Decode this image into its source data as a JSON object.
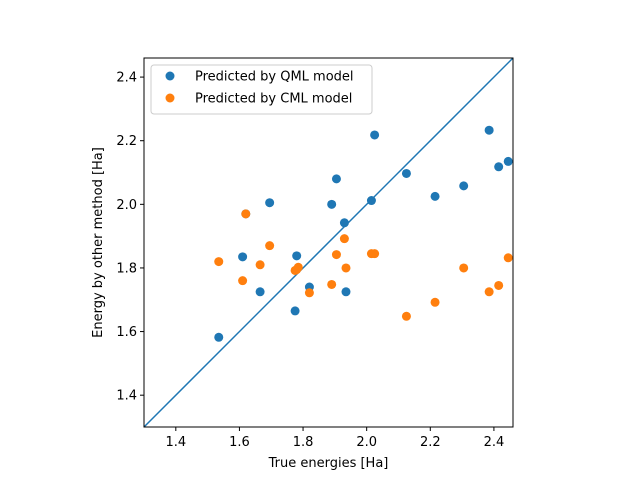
{
  "chart_data": {
    "type": "scatter",
    "title": "",
    "xlabel": "True energies [Ha]",
    "ylabel": "Energy by other method [Ha]",
    "xlim": [
      1.3,
      2.46
    ],
    "ylim": [
      1.3,
      2.46
    ],
    "xticks": [
      "1.4",
      "1.6",
      "1.8",
      "2.0",
      "2.2",
      "2.4"
    ],
    "yticks": [
      "1.4",
      "1.6",
      "1.8",
      "2.0",
      "2.2",
      "2.4"
    ],
    "grid": false,
    "legend_position": "top-left",
    "reference_line": {
      "type": "identity",
      "color": "#1f77b4"
    },
    "series": [
      {
        "name": "Predicted by QML model",
        "color": "#1f77b4",
        "points": [
          [
            1.535,
            1.582
          ],
          [
            1.61,
            1.835
          ],
          [
            1.62,
            1.97
          ],
          [
            1.665,
            1.725
          ],
          [
            1.695,
            2.005
          ],
          [
            1.775,
            1.665
          ],
          [
            1.78,
            1.838
          ],
          [
            1.82,
            1.74
          ],
          [
            1.89,
            2.0
          ],
          [
            1.905,
            2.08
          ],
          [
            1.93,
            1.942
          ],
          [
            1.935,
            1.725
          ],
          [
            2.015,
            2.012
          ],
          [
            2.025,
            2.218
          ],
          [
            2.125,
            2.097
          ],
          [
            2.215,
            2.025
          ],
          [
            2.305,
            2.058
          ],
          [
            2.385,
            2.233
          ],
          [
            2.415,
            2.118
          ],
          [
            2.445,
            2.135
          ]
        ]
      },
      {
        "name": "Predicted by CML model",
        "color": "#ff7f0e",
        "points": [
          [
            1.535,
            1.82
          ],
          [
            1.61,
            1.76
          ],
          [
            1.62,
            1.97
          ],
          [
            1.665,
            1.81
          ],
          [
            1.695,
            1.87
          ],
          [
            1.775,
            1.792
          ],
          [
            1.78,
            1.795
          ],
          [
            1.785,
            1.802
          ],
          [
            1.82,
            1.722
          ],
          [
            1.89,
            1.748
          ],
          [
            1.905,
            1.842
          ],
          [
            1.93,
            1.892
          ],
          [
            1.935,
            1.8
          ],
          [
            2.015,
            1.845
          ],
          [
            2.025,
            1.845
          ],
          [
            2.125,
            1.648
          ],
          [
            2.215,
            1.692
          ],
          [
            2.305,
            1.8
          ],
          [
            2.385,
            1.725
          ],
          [
            2.415,
            1.745
          ],
          [
            2.445,
            1.832
          ]
        ]
      }
    ]
  }
}
